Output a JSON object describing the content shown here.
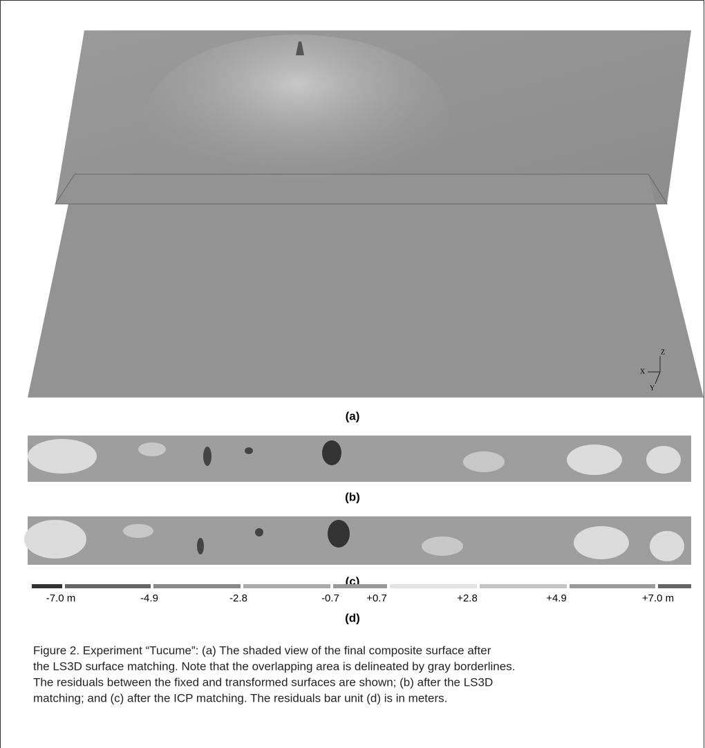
{
  "figure": {
    "axis_labels": {
      "x": "X",
      "y": "Y",
      "z": "Z"
    },
    "panels": {
      "a": "(a)",
      "b": "(b)",
      "c": "(c)",
      "d": "(d)"
    },
    "colorbar": {
      "labels": [
        "-7.0 m",
        "-4.9",
        "-2.8",
        "-0.7",
        "+0.7",
        "+2.8",
        "+4.9",
        "+7.0 m"
      ]
    },
    "caption": [
      "Figure 2. Experiment “Tucume”: (a) The shaded view of the final composite surface after",
      "the LS3D surface matching. Note that the overlapping area is delineated by gray borderlines.",
      "The residuals between the fixed and transformed surfaces are shown; (b) after the LS3D",
      "matching; and (c) after the ICP matching. The residuals bar unit (d) is in meters."
    ]
  }
}
